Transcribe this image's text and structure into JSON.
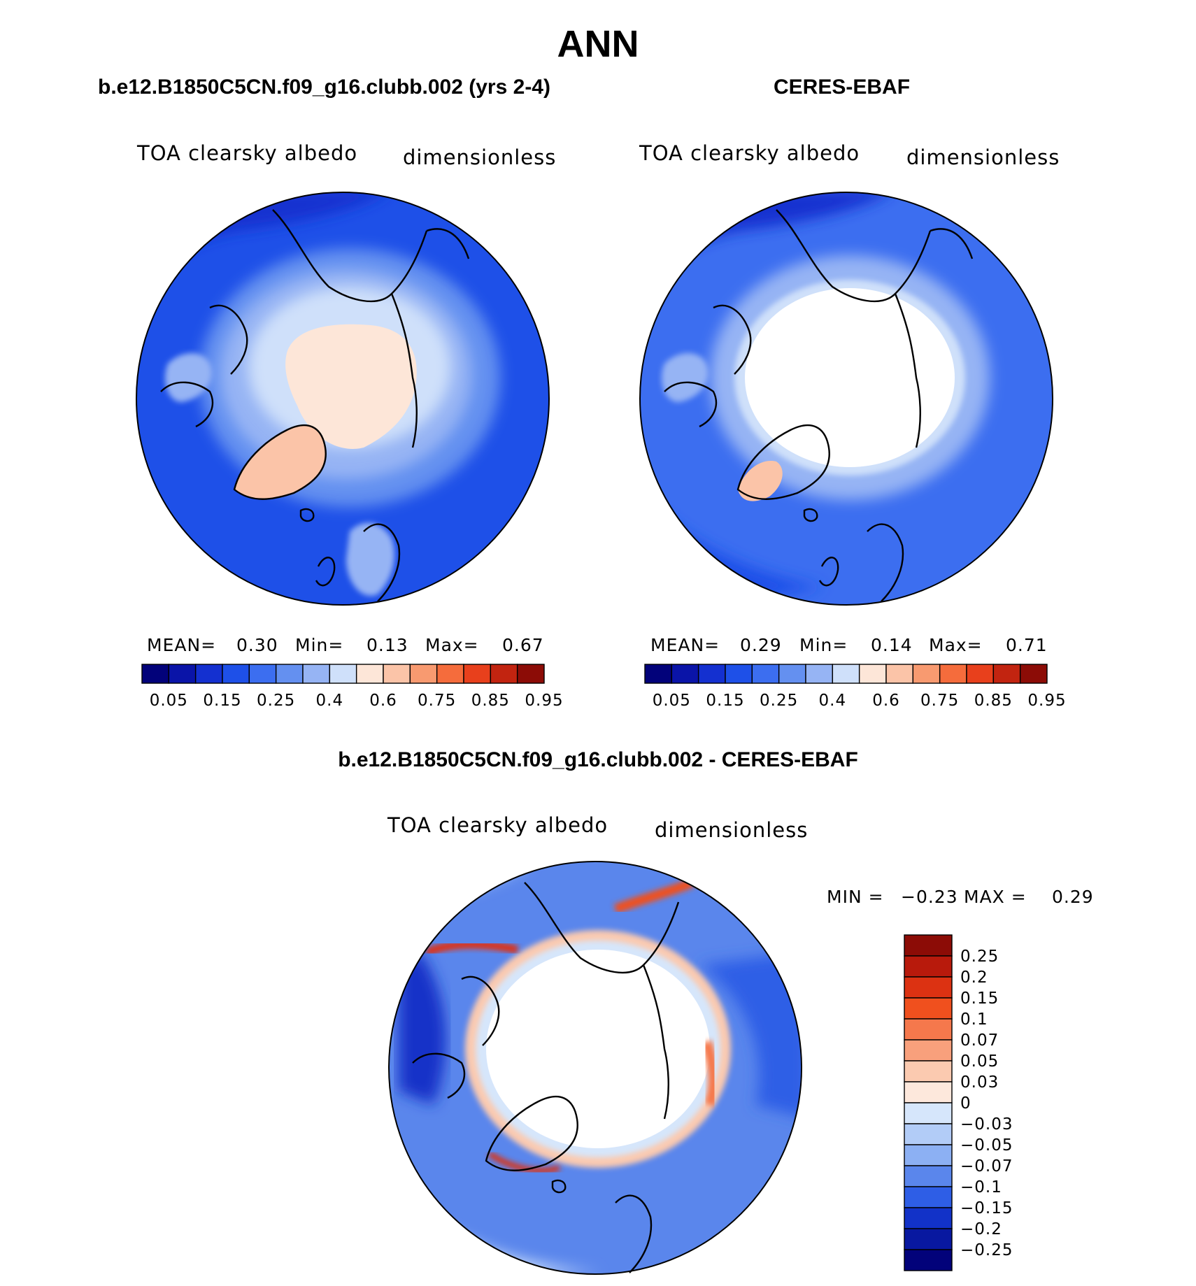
{
  "figure": {
    "title": "ANN",
    "panels": [
      {
        "id": "model",
        "title": "b.e12.B1850C5CN.f09_g16.clubb.002 (yrs 2-4)",
        "variable": "TOA clearsky albedo",
        "units": "dimensionless",
        "stats": {
          "mean_label": "MEAN=",
          "mean": "0.30",
          "min_label": "Min=",
          "min": "0.13",
          "max_label": "Max=",
          "max": "0.67"
        }
      },
      {
        "id": "obs",
        "title": "CERES-EBAF",
        "variable": "TOA clearsky albedo",
        "units": "dimensionless",
        "stats": {
          "mean_label": "MEAN=",
          "mean": "0.29",
          "min_label": "Min=",
          "min": "0.14",
          "max_label": "Max=",
          "max": "0.71"
        }
      },
      {
        "id": "diff",
        "title": "b.e12.B1850C5CN.f09_g16.clubb.002 - CERES-EBAF",
        "variable": "TOA clearsky albedo",
        "units": "dimensionless",
        "stats": {
          "min_label": "MIN =",
          "min": "−0.23",
          "max_label": "MAX =",
          "max": "0.29"
        }
      }
    ]
  },
  "chart_data": [
    {
      "type": "heatmap",
      "projection": "north polar stereographic",
      "title": "b.e12.B1850C5CN.f09_g16.clubb.002 (yrs 2-4)",
      "colorbar": {
        "orientation": "horizontal",
        "tick_labels": [
          "0.05",
          "0.15",
          "0.25",
          "0.4",
          "0.6",
          "0.75",
          "0.85",
          "0.95"
        ],
        "colors": [
          "#02027a",
          "#0a14a8",
          "#1430d0",
          "#1e50e8",
          "#3c6ef0",
          "#6490f0",
          "#96b4f4",
          "#cfe0fa",
          "#fde6d8",
          "#fbc4a8",
          "#f89a70",
          "#f56c3c",
          "#e8401c",
          "#c22410",
          "#8c0c06"
        ]
      },
      "stats": {
        "mean": 0.3,
        "min": 0.13,
        "max": 0.67
      }
    },
    {
      "type": "heatmap",
      "projection": "north polar stereographic",
      "title": "CERES-EBAF",
      "colorbar": {
        "orientation": "horizontal",
        "tick_labels": [
          "0.05",
          "0.15",
          "0.25",
          "0.4",
          "0.6",
          "0.75",
          "0.85",
          "0.95"
        ],
        "colors": [
          "#02027a",
          "#0a14a8",
          "#1430d0",
          "#1e50e8",
          "#3c6ef0",
          "#6490f0",
          "#96b4f4",
          "#cfe0fa",
          "#fde6d8",
          "#fbc4a8",
          "#f89a70",
          "#f56c3c",
          "#e8401c",
          "#c22410",
          "#8c0c06"
        ]
      },
      "stats": {
        "mean": 0.29,
        "min": 0.14,
        "max": 0.71
      }
    },
    {
      "type": "heatmap",
      "projection": "north polar stereographic",
      "title": "b.e12.B1850C5CN.f09_g16.clubb.002 - CERES-EBAF",
      "colorbar": {
        "orientation": "vertical",
        "tick_labels": [
          "0.25",
          "0.2",
          "0.15",
          "0.1",
          "0.07",
          "0.05",
          "0.03",
          "0",
          "−0.03",
          "−0.05",
          "−0.07",
          "−0.1",
          "−0.15",
          "−0.2",
          "−0.25"
        ],
        "colors": [
          "#8c0c06",
          "#b81a0c",
          "#dc3212",
          "#f0501e",
          "#f5784c",
          "#f8a07c",
          "#fbcab0",
          "#fde8dc",
          "#d6e6fb",
          "#b2ccf7",
          "#8cb0f3",
          "#5a86ec",
          "#2e5ee6",
          "#1232c8",
          "#0818a0",
          "#02027a"
        ]
      },
      "stats": {
        "min": -0.23,
        "max": 0.29
      }
    }
  ]
}
